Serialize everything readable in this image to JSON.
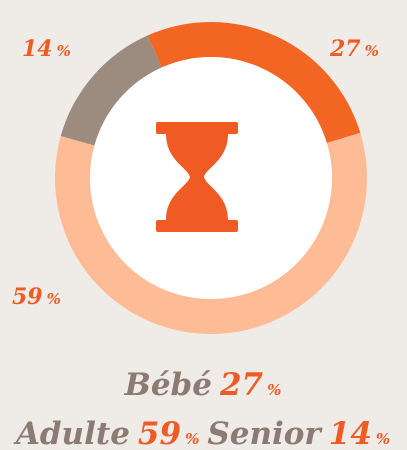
{
  "chart_data": {
    "type": "pie",
    "categories": [
      "Bébé",
      "Adulte",
      "Senior"
    ],
    "values": [
      27,
      59,
      14
    ],
    "unit": "%",
    "colors": [
      "#f26522",
      "#fdbb96",
      "#9c8c80"
    ]
  }
}
